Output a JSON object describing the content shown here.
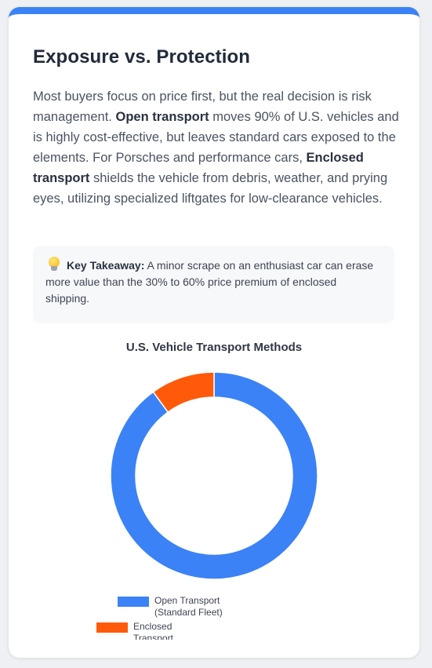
{
  "card": {
    "title": "Exposure vs. Protection",
    "paragraph": {
      "p1": "Most buyers focus on price first, but the real decision is risk management. ",
      "b1": "Open transport",
      "p2": " moves 90% of U.S. vehicles and is highly cost-effective, but leaves standard cars exposed to the elements. For Porsches and performance cars, ",
      "b2": "Enclosed transport",
      "p3": " shields the vehicle from debris, weather, and prying eyes, utilizing specialized liftgates for low-clearance vehicles."
    },
    "takeaway": {
      "icon": "lightbulb-icon",
      "label": "Key Takeaway:",
      "text": " A minor scrape on an enthusiast car can erase more value than the 30% to 60% price premium of enclosed shipping."
    }
  },
  "colors": {
    "accent": "#3b82f6",
    "open": "#3b82f6",
    "enclosed": "#ff5a0a"
  },
  "chart_data": {
    "type": "pie",
    "title": "U.S. Vehicle Transport Methods",
    "categories": [
      "Open Transport (Standard Fleet)",
      "Enclosed Transport"
    ],
    "values": [
      90,
      10
    ],
    "colors": [
      "#3b82f6",
      "#ff5a0a"
    ],
    "donut": true,
    "legend_position": "bottom",
    "legend": [
      {
        "label_line1": "Open Transport",
        "label_line2": "(Standard Fleet)"
      },
      {
        "label_line1": "Enclosed",
        "label_line2": "Transport"
      }
    ]
  }
}
